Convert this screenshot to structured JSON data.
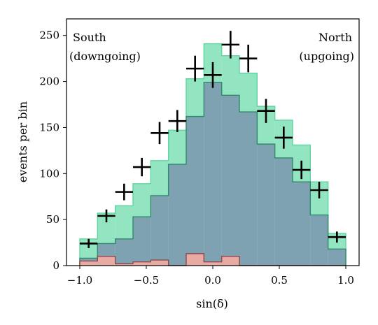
{
  "chart_data": {
    "type": "bar",
    "xlabel": "sin(δ)",
    "ylabel": "events per bin",
    "xlim": [
      -1.1,
      1.1
    ],
    "ylim": [
      0,
      268
    ],
    "xticks": [
      -1.0,
      -0.5,
      0.0,
      0.5,
      1.0
    ],
    "xtick_labels": [
      "−1.0",
      "−0.5",
      "0.0",
      "0.5",
      "1.0"
    ],
    "yticks": [
      0,
      50,
      100,
      150,
      200,
      250
    ],
    "ytick_labels": [
      "0",
      "50",
      "100",
      "150",
      "200",
      "250"
    ],
    "bin_edges": [
      -1.0,
      -0.8667,
      -0.7333,
      -0.6,
      -0.4667,
      -0.3333,
      -0.2,
      -0.0667,
      0.0667,
      0.2,
      0.3333,
      0.4667,
      0.6,
      0.7333,
      0.8667,
      1.0
    ],
    "series": [
      {
        "kind": "step-fill",
        "color": "#5fd6a0",
        "fill_color": "#93e4c0",
        "values": [
          29,
          57,
          65,
          89,
          114,
          147,
          203,
          241,
          228,
          209,
          173,
          158,
          131,
          91,
          35
        ]
      },
      {
        "kind": "step-fill",
        "color": "#2e8a6a",
        "fill_color": "#7fa2b2",
        "values": [
          8,
          24,
          29,
          53,
          76,
          110,
          162,
          199,
          185,
          167,
          132,
          117,
          91,
          55,
          18
        ]
      },
      {
        "kind": "step-fill",
        "color": "#8c4a4a",
        "fill_color": "#e8aba3",
        "values": [
          5,
          10,
          2,
          4,
          6,
          0,
          13,
          4,
          10,
          0,
          0,
          0,
          0,
          0,
          0
        ]
      },
      {
        "kind": "points",
        "color": "#000000",
        "x": [
          -0.9333,
          -0.8,
          -0.6667,
          -0.5333,
          -0.4,
          -0.2667,
          -0.1333,
          0.0,
          0.1333,
          0.2667,
          0.4,
          0.5333,
          0.6667,
          0.8,
          0.9333
        ],
        "y": [
          24,
          54,
          80,
          107,
          144,
          157,
          214,
          207,
          240,
          225,
          168,
          139,
          104,
          82,
          31
        ],
        "yerr": [
          5,
          7,
          9,
          10,
          12,
          12,
          14,
          14,
          15,
          15,
          13,
          12,
          10,
          9,
          6
        ]
      }
    ],
    "annotations": {
      "left_line1": "South",
      "left_line2": "(downgoing)",
      "right_line1": "North",
      "right_line2": "(upgoing)"
    }
  }
}
